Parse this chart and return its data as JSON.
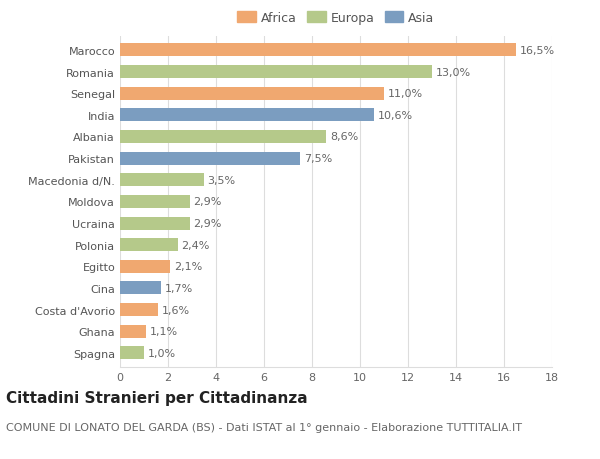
{
  "categories": [
    "Marocco",
    "Romania",
    "Senegal",
    "India",
    "Albania",
    "Pakistan",
    "Macedonia d/N.",
    "Moldova",
    "Ucraina",
    "Polonia",
    "Egitto",
    "Cina",
    "Costa d'Avorio",
    "Ghana",
    "Spagna"
  ],
  "values": [
    16.5,
    13.0,
    11.0,
    10.6,
    8.6,
    7.5,
    3.5,
    2.9,
    2.9,
    2.4,
    2.1,
    1.7,
    1.6,
    1.1,
    1.0
  ],
  "labels": [
    "16,5%",
    "13,0%",
    "11,0%",
    "10,6%",
    "8,6%",
    "7,5%",
    "3,5%",
    "2,9%",
    "2,9%",
    "2,4%",
    "2,1%",
    "1,7%",
    "1,6%",
    "1,1%",
    "1,0%"
  ],
  "continents": [
    "Africa",
    "Europa",
    "Africa",
    "Asia",
    "Europa",
    "Asia",
    "Europa",
    "Europa",
    "Europa",
    "Europa",
    "Africa",
    "Asia",
    "Africa",
    "Africa",
    "Europa"
  ],
  "colors": {
    "Africa": "#F0A870",
    "Europa": "#B5C98A",
    "Asia": "#7B9DC0"
  },
  "legend_items": [
    "Africa",
    "Europa",
    "Asia"
  ],
  "xlim": [
    0,
    18
  ],
  "xticks": [
    0,
    2,
    4,
    6,
    8,
    10,
    12,
    14,
    16,
    18
  ],
  "title": "Cittadini Stranieri per Cittadinanza",
  "subtitle": "COMUNE DI LONATO DEL GARDA (BS) - Dati ISTAT al 1° gennaio - Elaborazione TUTTITALIA.IT",
  "background_color": "#ffffff",
  "bar_height": 0.6,
  "title_fontsize": 11,
  "subtitle_fontsize": 8,
  "label_fontsize": 8,
  "tick_fontsize": 8,
  "legend_fontsize": 9,
  "grid_color": "#dddddd"
}
